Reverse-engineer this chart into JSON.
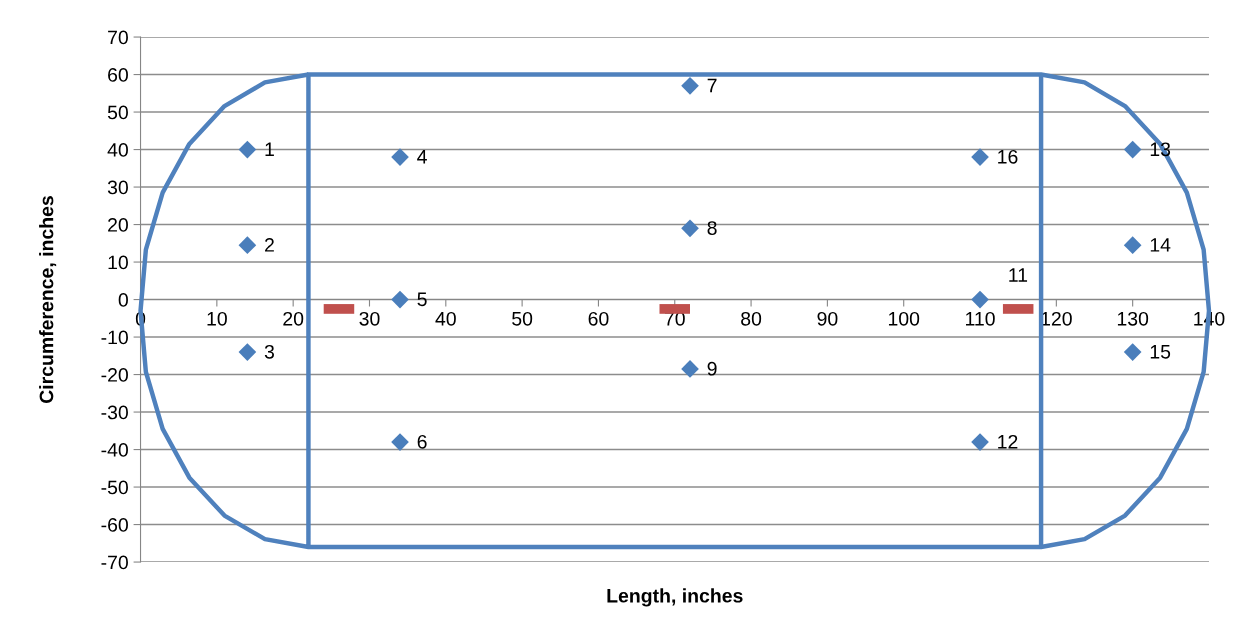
{
  "chart_data": {
    "type": "scatter",
    "xlabel": "Length, inches",
    "ylabel": "Circumference, inches",
    "xlim": [
      0,
      140
    ],
    "xticks": [
      0,
      10,
      20,
      30,
      40,
      50,
      60,
      70,
      80,
      90,
      100,
      110,
      120,
      130,
      140
    ],
    "ylim": [
      -70,
      70
    ],
    "yticks": [
      -70,
      -60,
      -50,
      -40,
      -30,
      -20,
      -10,
      0,
      10,
      20,
      30,
      40,
      50,
      60,
      70
    ],
    "grid": "y",
    "legend": false,
    "series": [
      {
        "type": "line",
        "color": "#4f81bd",
        "marker": "none",
        "x": [
          22,
          16.3,
          11,
          6.4,
          2.9,
          0.7,
          0,
          0.7,
          2.9,
          6.4,
          11,
          16.3,
          22,
          118,
          123.7,
          129,
          133.6,
          137.1,
          139.3,
          140,
          139.3,
          137.1,
          133.6,
          129,
          123.7,
          118,
          22,
          22
        ],
        "values": [
          60,
          57.9,
          51.6,
          41.5,
          28.5,
          13.3,
          -3,
          -19.3,
          -34.5,
          -47.5,
          -57.6,
          -63.9,
          -66,
          -66,
          -63.9,
          -57.6,
          -47.5,
          -34.5,
          -19.3,
          -3,
          13.3,
          28.5,
          41.5,
          51.6,
          57.9,
          60,
          60,
          -66
        ]
      },
      {
        "type": "line",
        "color": "#4f81bd",
        "marker": "none",
        "x": [
          118,
          118
        ],
        "values": [
          60,
          -66
        ]
      },
      {
        "color": "#4a7ebb",
        "marker": "diamond",
        "x": [
          14,
          14,
          14,
          34,
          34,
          34,
          72,
          72,
          72,
          110,
          110,
          130,
          130,
          130,
          110
        ],
        "values": [
          40,
          14.5,
          -14,
          38,
          0,
          -38,
          57,
          19,
          -18.5,
          0,
          -38,
          40,
          14.5,
          -14,
          38
        ]
      },
      {
        "type": "line",
        "color": "#c0504d",
        "marker": "none",
        "x": [
          24,
          28
        ],
        "values": [
          -2.5,
          -2.5
        ]
      },
      {
        "type": "line",
        "color": "#c0504d",
        "marker": "none",
        "x": [
          68,
          72
        ],
        "values": [
          -2.5,
          -2.5
        ]
      },
      {
        "type": "line",
        "color": "#c0504d",
        "marker": "none",
        "x": [
          113,
          117
        ],
        "values": [
          -2.5,
          -2.5
        ]
      }
    ],
    "annotations": [
      {
        "text": "1",
        "x": 14,
        "y": 40
      },
      {
        "text": "2",
        "x": 14,
        "y": 14.5
      },
      {
        "text": "3",
        "x": 14,
        "y": -14
      },
      {
        "text": "4",
        "x": 34,
        "y": 38
      },
      {
        "text": "5",
        "x": 34,
        "y": 0
      },
      {
        "text": "6",
        "x": 34,
        "y": -38
      },
      {
        "text": "7",
        "x": 72,
        "y": 57
      },
      {
        "text": "8",
        "x": 72,
        "y": 19
      },
      {
        "text": "9",
        "x": 72,
        "y": -18.5
      },
      {
        "text": "11",
        "x": 110,
        "y": 0
      },
      {
        "text": "12",
        "x": 110,
        "y": -38
      },
      {
        "text": "13",
        "x": 130,
        "y": 40
      },
      {
        "text": "14",
        "x": 130,
        "y": 14.5
      },
      {
        "text": "15",
        "x": 130,
        "y": -14
      },
      {
        "text": "16",
        "x": 110,
        "y": 38
      }
    ]
  }
}
